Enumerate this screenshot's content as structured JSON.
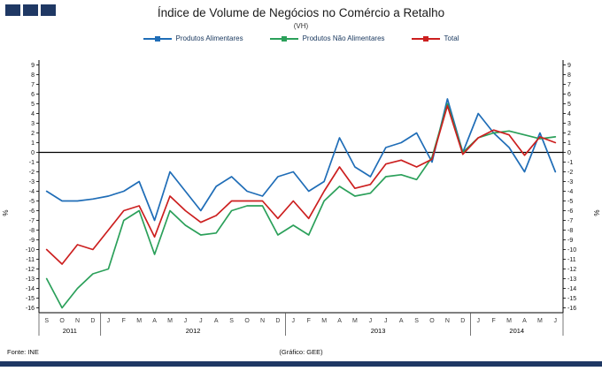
{
  "footer": {
    "source": "Fonte: INE",
    "credit": "(Gráfico: GEE)"
  },
  "chart_data": {
    "type": "line",
    "title": "Índice de Volume de Negócios no Comércio a Retalho",
    "subtitle": "(VH)",
    "ylabel_left": "%",
    "ylabel_right": "%",
    "ylim": [
      -16,
      9
    ],
    "ytick_step": 1,
    "grid": "off",
    "legend_position": "top",
    "x_months": [
      "S",
      "O",
      "N",
      "D",
      "J",
      "F",
      "M",
      "A",
      "M",
      "J",
      "J",
      "A",
      "S",
      "O",
      "N",
      "D",
      "J",
      "F",
      "M",
      "A",
      "M",
      "J",
      "J",
      "A",
      "S",
      "O",
      "N",
      "D",
      "J",
      "F",
      "M",
      "A",
      "M",
      "J"
    ],
    "year_groups": [
      {
        "label": "2011",
        "start": 0,
        "count": 4
      },
      {
        "label": "2012",
        "start": 4,
        "count": 12
      },
      {
        "label": "2013",
        "start": 16,
        "count": 12
      },
      {
        "label": "2014",
        "start": 28,
        "count": 6
      }
    ],
    "series": [
      {
        "name": "Produtos Alimentares",
        "color": "#1F6DB7",
        "values": [
          -4.0,
          -5.0,
          -5.0,
          -4.8,
          -4.5,
          -4.0,
          -3.0,
          -7.0,
          -2.0,
          -4.0,
          -6.0,
          -3.5,
          -2.5,
          -4.0,
          -4.5,
          -2.5,
          -2.0,
          -4.0,
          -3.0,
          1.5,
          -1.5,
          -2.5,
          0.5,
          1.0,
          2.0,
          -1.0,
          5.5,
          0.0,
          4.0,
          2.0,
          0.5,
          -2.0,
          2.0,
          -2.0
        ]
      },
      {
        "name": "Produtos Não Alimentares",
        "color": "#2BA05A",
        "values": [
          -13.0,
          -16.0,
          -14.0,
          -12.5,
          -12.0,
          -7.0,
          -6.0,
          -10.5,
          -6.0,
          -7.5,
          -8.5,
          -8.3,
          -6.0,
          -5.5,
          -5.5,
          -8.5,
          -7.5,
          -8.5,
          -5.0,
          -3.5,
          -4.5,
          -4.2,
          -2.5,
          -2.3,
          -2.8,
          -0.5,
          5.0,
          0.0,
          1.5,
          2.0,
          2.2,
          1.8,
          1.4,
          1.6
        ]
      },
      {
        "name": "Total",
        "color": "#CC1F1F",
        "values": [
          -10.0,
          -11.5,
          -9.5,
          -10.0,
          -8.0,
          -6.0,
          -5.5,
          -8.7,
          -4.5,
          -6.0,
          -7.2,
          -6.5,
          -5.0,
          -5.0,
          -5.0,
          -6.8,
          -5.0,
          -6.8,
          -4.0,
          -1.5,
          -3.7,
          -3.3,
          -1.2,
          -0.8,
          -1.5,
          -0.7,
          4.8,
          -0.2,
          1.5,
          2.3,
          1.8,
          -0.3,
          1.6,
          1.0
        ]
      }
    ]
  }
}
